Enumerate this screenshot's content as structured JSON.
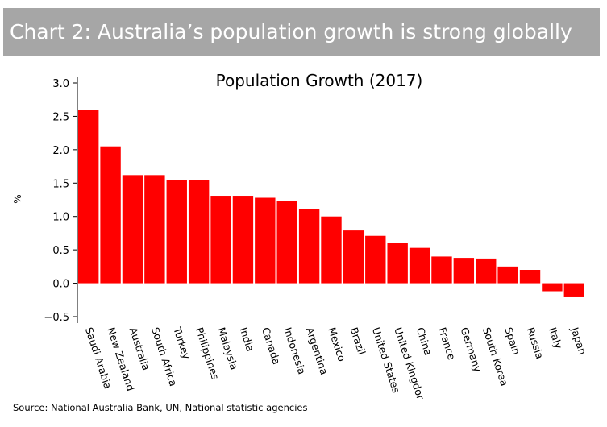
{
  "banner": {
    "title": "Chart 2: Australia’s population growth is strong globally"
  },
  "chart_data": {
    "type": "bar",
    "title": "Population Growth (2017)",
    "xlabel": "",
    "ylabel": "%",
    "ylim": [
      -0.5,
      3.0
    ],
    "yticks": [
      3.0,
      2.5,
      2.0,
      1.5,
      1.0,
      0.5,
      0.0,
      -0.5
    ],
    "ytick_labels": [
      "3.0",
      "2.5",
      "2.0",
      "1.5",
      "1.0",
      "0.5",
      "0.0",
      "−0.5"
    ],
    "bar_color": "#ff0000",
    "grid": false,
    "categories": [
      "Saudi Arabia",
      "New Zealand",
      "Australia",
      "South Africa",
      "Turkey",
      "Philippines",
      "Malaysia",
      "India",
      "Canada",
      "Indonesia",
      "Argentina",
      "Mexico",
      "Brazil",
      "United States",
      "United Kingdom",
      "China",
      "France",
      "Germany",
      "South Korea",
      "Spain",
      "Russia",
      "Italy",
      "Japan"
    ],
    "values": [
      2.6,
      2.05,
      1.62,
      1.62,
      1.55,
      1.54,
      1.31,
      1.31,
      1.28,
      1.23,
      1.11,
      1.0,
      0.79,
      0.71,
      0.6,
      0.53,
      0.4,
      0.38,
      0.37,
      0.25,
      0.2,
      -0.12,
      -0.21
    ]
  },
  "source": "Source: National Australia Bank, UN, National statistic agencies"
}
